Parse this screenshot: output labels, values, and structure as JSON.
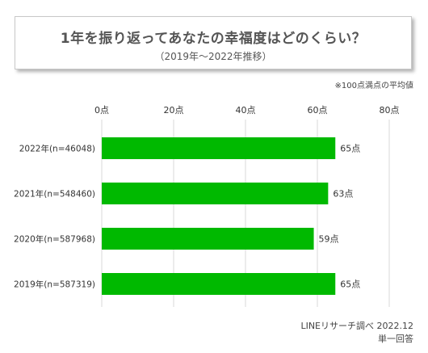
{
  "title": "1年を振り返ってあなたの幸福度はどのくらい？",
  "subtitle": "（2019年〜2022年推移）",
  "note": "※100点満点の平均値",
  "source": {
    "line1": "LINEリサーチ調べ 2022.12",
    "line2": "単一回答"
  },
  "colors": {
    "bar": "#00b900",
    "grid": "#d9d9d9",
    "text": "#333333"
  },
  "chart_data": {
    "type": "bar",
    "orientation": "horizontal",
    "categories": [
      "2022年(n=46048)",
      "2021年(n=548460)",
      "2020年(n=587968)",
      "2019年(n=587319)"
    ],
    "values": [
      65,
      63,
      59,
      65
    ],
    "value_labels": [
      "65点",
      "63点",
      "59点",
      "65点"
    ],
    "xlim": [
      0,
      80
    ],
    "xticks": [
      0,
      20,
      40,
      60,
      80
    ],
    "xtick_labels": [
      "0点",
      "20点",
      "40点",
      "60点",
      "80点"
    ],
    "grid": true,
    "xlabel": "",
    "ylabel": ""
  }
}
